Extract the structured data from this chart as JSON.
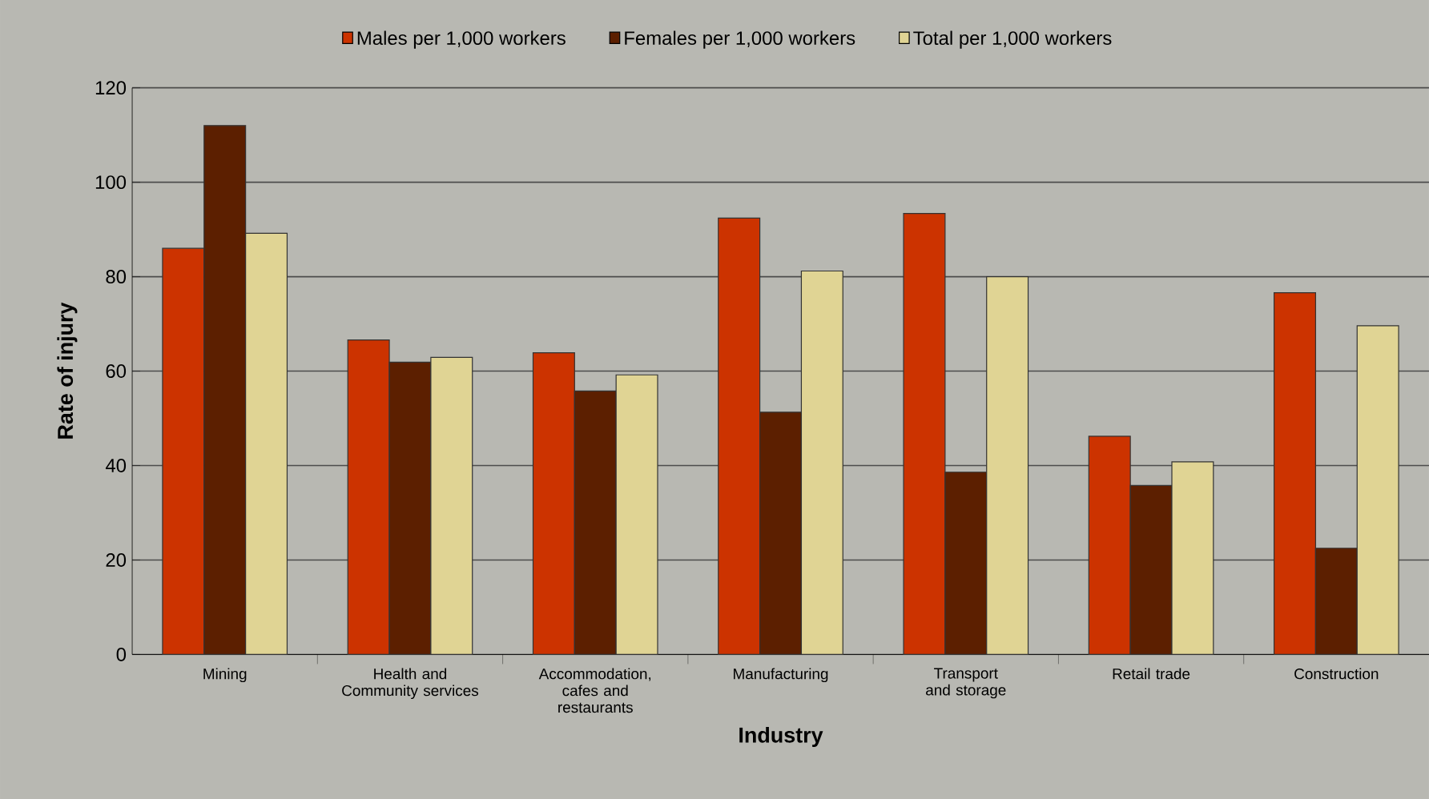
{
  "chart_data": {
    "type": "bar",
    "xlabel": "Industry",
    "ylabel": "Rate of injury",
    "categories": [
      "Mining",
      "Health and Community services",
      "Accommodation, cafes and restaurants",
      "Manufacturing",
      "Transport and storage",
      "Retail trade",
      "Construction"
    ],
    "series": [
      {
        "name": "Males per 1,000 workers",
        "color": "#cc3300",
        "values": [
          86,
          66.6,
          63.9,
          92.4,
          93.4,
          46.2,
          76.6
        ]
      },
      {
        "name": "Females per 1,000 workers",
        "color": "#5c1f00",
        "values": [
          112,
          61.9,
          55.8,
          51.3,
          38.6,
          35.8,
          22.5
        ]
      },
      {
        "name": "Total per 1,000 workers",
        "color": "#e0d494",
        "values": [
          89.2,
          62.9,
          59.2,
          81.2,
          80,
          40.8,
          69.6
        ]
      }
    ],
    "ylim": [
      0,
      120
    ],
    "yticks": [
      0,
      20,
      40,
      60,
      80,
      100,
      120
    ],
    "grid": "y",
    "legend": "top"
  }
}
